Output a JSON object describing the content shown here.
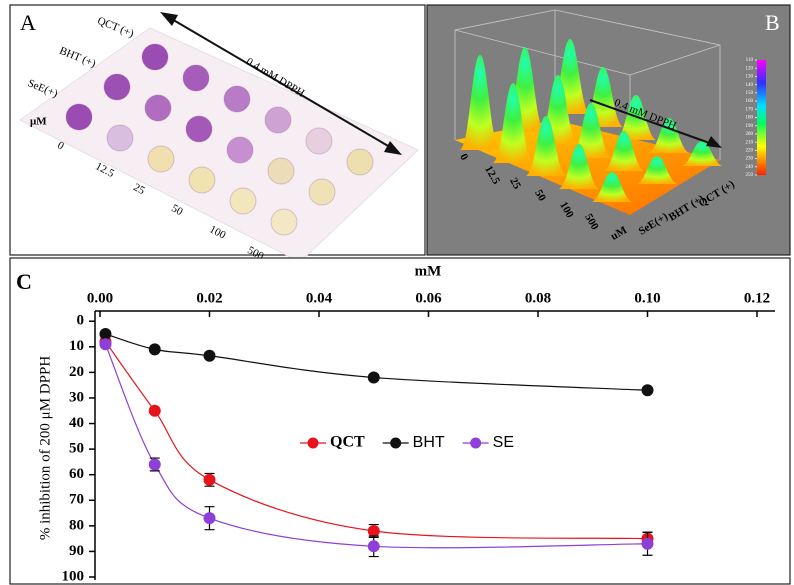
{
  "panel_a": {
    "label": "A",
    "rows": [
      "QCT (+)",
      "BHT (+)",
      "SeE(+)"
    ],
    "unit": "μM",
    "concentrations": [
      "0",
      "12.5",
      "25",
      "50",
      "100",
      "500"
    ],
    "arrow_label": "0.4 mM DPPH"
  },
  "panel_b": {
    "label": "B",
    "arrow_label": "0.4 mM DPPH",
    "concentrations": [
      "0",
      "12.5",
      "25",
      "50",
      "100",
      "500"
    ],
    "unit": "uM",
    "rows": [
      "QCT (+)",
      "BHT (+)",
      "SeE(+)"
    ],
    "colorbar_ticks": [
      110,
      120,
      130,
      140,
      150,
      160,
      170,
      180,
      190,
      200,
      210,
      220,
      230,
      240,
      250
    ]
  },
  "chart_data": {
    "type": "line",
    "panel_label": "C",
    "xlabel": "mM",
    "ylabel": "% inhibition of 200 μM DPPH",
    "xlim": [
      0,
      0.12
    ],
    "xticks": [
      {
        "value": 0,
        "label": "0.00"
      },
      {
        "value": 0.02,
        "label": "0.02"
      },
      {
        "value": 0.04,
        "label": "0.04"
      },
      {
        "value": 0.06,
        "label": "0.06"
      },
      {
        "value": 0.08,
        "label": "0.08"
      },
      {
        "value": 0.1,
        "label": "0.10"
      },
      {
        "value": 0.12,
        "label": "0.12"
      }
    ],
    "ylim": [
      -4,
      100
    ],
    "yticks": [
      0,
      10,
      20,
      30,
      40,
      50,
      60,
      70,
      80,
      90,
      100
    ],
    "y_inverted": true,
    "x_axis_position": "top",
    "series": [
      {
        "name": "QCT",
        "color": "#e8141b",
        "x": [
          0.001,
          0.01,
          0.02,
          0.05,
          0.1
        ],
        "values": [
          8,
          35,
          62,
          82,
          85
        ],
        "errors": [
          1,
          1,
          2.5,
          2.5,
          2.5
        ]
      },
      {
        "name": "BHT",
        "color": "#111111",
        "x": [
          0.001,
          0.01,
          0.02,
          0.05,
          0.1
        ],
        "values": [
          5,
          11,
          13.5,
          22,
          27
        ],
        "errors": [
          1,
          1,
          1,
          1,
          1
        ]
      },
      {
        "name": "SE",
        "color": "#8e3fd6",
        "x": [
          0.001,
          0.01,
          0.02,
          0.05,
          0.1
        ],
        "values": [
          9,
          56,
          77,
          88,
          87
        ],
        "errors": [
          1,
          2.5,
          4.5,
          4,
          4.5
        ]
      }
    ]
  }
}
